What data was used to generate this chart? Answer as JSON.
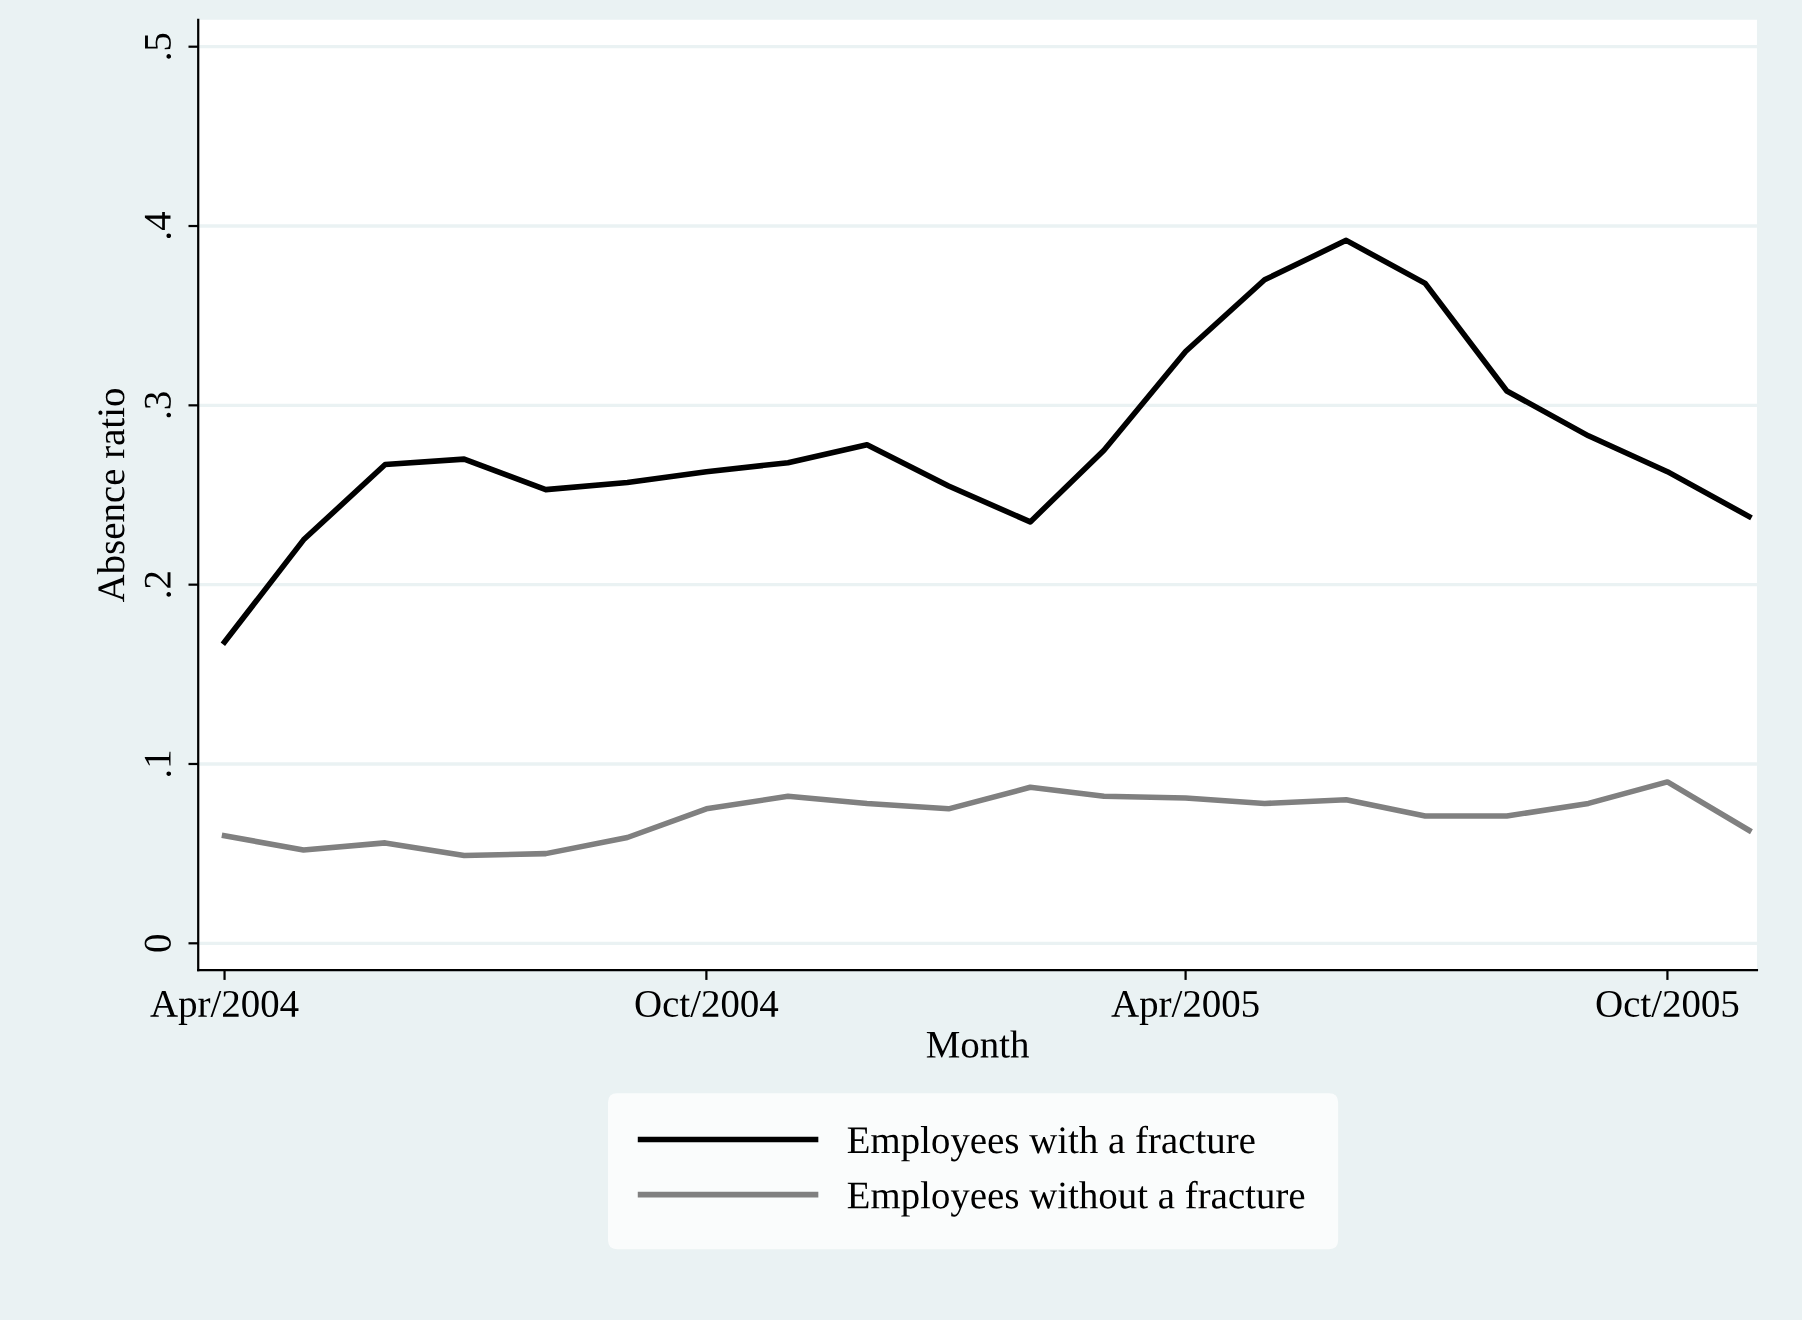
{
  "chart_data": {
    "type": "line",
    "xlabel": "Month",
    "ylabel": "Absence ratio",
    "x": [
      "2004-04",
      "2004-05",
      "2004-06",
      "2004-07",
      "2004-08",
      "2004-09",
      "2004-10",
      "2004-11",
      "2004-12",
      "2005-01",
      "2005-02",
      "2005-03",
      "2005-04",
      "2005-05",
      "2005-06",
      "2005-07",
      "2005-08",
      "2005-09",
      "2005-10",
      "2005-11"
    ],
    "series": [
      {
        "name": "Employees with a fracture",
        "color": "#000000",
        "values": [
          0.168,
          0.225,
          0.267,
          0.27,
          0.253,
          0.257,
          0.263,
          0.268,
          0.278,
          0.255,
          0.235,
          0.275,
          0.33,
          0.37,
          0.392,
          0.368,
          0.308,
          0.283,
          0.263,
          0.238
        ]
      },
      {
        "name": "Employees without a fracture",
        "color": "#808080",
        "values": [
          0.06,
          0.052,
          0.056,
          0.049,
          0.05,
          0.059,
          0.075,
          0.082,
          0.078,
          0.075,
          0.087,
          0.082,
          0.081,
          0.078,
          0.08,
          0.071,
          0.071,
          0.078,
          0.09,
          0.063
        ]
      }
    ],
    "xlim": [
      "2004-03-22",
      "2005-11-04"
    ],
    "xticks": [
      {
        "value": "2004-04",
        "label": "Apr/2004"
      },
      {
        "value": "2004-10",
        "label": "Oct/2004"
      },
      {
        "value": "2005-04",
        "label": "Apr/2005"
      },
      {
        "value": "2005-10",
        "label": "Oct/2005"
      }
    ],
    "ylim": [
      -0.015,
      0.515
    ],
    "yticks": [
      {
        "value": 0,
        "label": "0"
      },
      {
        "value": 0.1,
        "label": ".1"
      },
      {
        "value": 0.2,
        "label": ".2"
      },
      {
        "value": 0.3,
        "label": ".3"
      },
      {
        "value": 0.4,
        "label": ".4"
      },
      {
        "value": 0.5,
        "label": ".5"
      }
    ],
    "grid": "y",
    "legend": "bottom",
    "marker": "none",
    "line_style": "solid"
  }
}
